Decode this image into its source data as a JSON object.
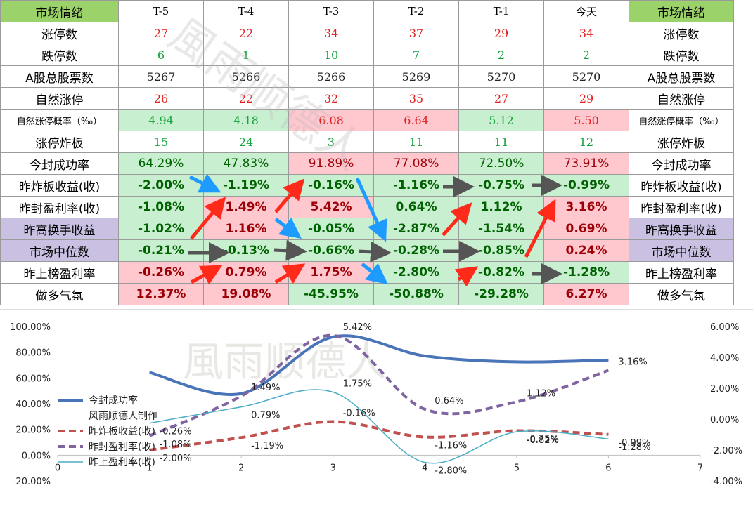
{
  "table": {
    "header": {
      "label_left": "市场情绪",
      "days": [
        "T-5",
        "T-4",
        "T-3",
        "T-2",
        "T-1",
        "今天"
      ],
      "label_right": "市场情绪"
    },
    "rows": [
      {
        "label": "涨停数",
        "values": [
          "27",
          "22",
          "34",
          "37",
          "29",
          "34"
        ],
        "colors": [
          "red",
          "red",
          "red",
          "red",
          "red",
          "red"
        ],
        "style": "plain"
      },
      {
        "label": "跌停数",
        "values": [
          "6",
          "1",
          "10",
          "7",
          "2",
          "2"
        ],
        "colors": [
          "green",
          "green",
          "green",
          "green",
          "green",
          "green"
        ],
        "style": "plain"
      },
      {
        "label": "A股总股票数",
        "values": [
          "5267",
          "5266",
          "5266",
          "5269",
          "5270",
          "5270"
        ],
        "colors": [
          "black",
          "black",
          "black",
          "black",
          "black",
          "black"
        ],
        "style": "plain"
      },
      {
        "label": "自然涨停",
        "values": [
          "26",
          "22",
          "32",
          "35",
          "27",
          "29"
        ],
        "colors": [
          "red",
          "red",
          "red",
          "red",
          "red",
          "red"
        ],
        "style": "plain"
      },
      {
        "label": "自然涨停概率（‰）",
        "values": [
          "4.94",
          "4.18",
          "6.08",
          "6.64",
          "5.12",
          "5.50"
        ],
        "colors": [
          "green",
          "green",
          "red",
          "red",
          "green",
          "red"
        ],
        "style": "mono-bg",
        "small_label": true
      },
      {
        "label": "涨停炸板",
        "values": [
          "15",
          "24",
          "3",
          "11",
          "11",
          "12"
        ],
        "colors": [
          "green",
          "green",
          "green",
          "green",
          "green",
          "green"
        ],
        "style": "plain"
      },
      {
        "label": "今封成功率",
        "values": [
          "64.29%",
          "47.83%",
          "91.89%",
          "77.08%",
          "72.50%",
          "73.91%"
        ],
        "colors": [
          "green",
          "green",
          "red",
          "red",
          "green",
          "red"
        ],
        "style": "pct-bg"
      },
      {
        "label": "昨炸板收益(收)",
        "values": [
          "-2.00%",
          "-1.19%",
          "-0.16%",
          "-1.16%",
          "-0.75%",
          "-0.99%"
        ],
        "colors": [
          "green",
          "green",
          "green",
          "green",
          "green",
          "green"
        ],
        "style": "bold-bg"
      },
      {
        "label": "昨封盈利率(收)",
        "values": [
          "-1.08%",
          "1.49%",
          "5.42%",
          "0.64%",
          "1.12%",
          "3.16%"
        ],
        "colors": [
          "green",
          "red",
          "red",
          "green",
          "green",
          "red"
        ],
        "style": "bold-bg"
      },
      {
        "label": "昨高换手收益",
        "values": [
          "-1.02%",
          "1.16%",
          "-0.05%",
          "-2.87%",
          "-1.54%",
          "0.69%"
        ],
        "colors": [
          "green",
          "red",
          "green",
          "green",
          "green",
          "red"
        ],
        "style": "bold-bg",
        "purple_label": true
      },
      {
        "label": "市场中位数",
        "values": [
          "-0.21%",
          "-0.13%",
          "-0.66%",
          "-0.28%",
          "-0.85%",
          "0.24%"
        ],
        "colors": [
          "green",
          "green",
          "green",
          "green",
          "green",
          "red"
        ],
        "style": "bold-bg",
        "purple_label": true
      },
      {
        "label": "昨上榜盈利率",
        "values": [
          "-0.26%",
          "0.79%",
          "1.75%",
          "-2.80%",
          "-0.82%",
          "-1.28%"
        ],
        "colors": [
          "red",
          "red",
          "red",
          "green",
          "green",
          "green"
        ],
        "style": "bold-bg"
      },
      {
        "label": "做多气氛",
        "values": [
          "12.37%",
          "19.08%",
          "-45.95%",
          "-50.88%",
          "-29.28%",
          "6.27%"
        ],
        "colors": [
          "red",
          "red",
          "green",
          "green",
          "green",
          "red"
        ],
        "style": "bold-bg"
      }
    ]
  },
  "colors": {
    "header_green": "#9bd36a",
    "cell_green": "#c8efcf",
    "cell_red": "#ffc7ce",
    "label_purple": "#c9c0e2",
    "arrow_red": "#ff2a1a",
    "arrow_blue": "#1e9bff",
    "arrow_gray": "#555555",
    "line_blue": "#4a74b8",
    "line_red_dash": "#c0504d",
    "line_purple_dash": "#8064a2",
    "line_cyan": "#4bacc6"
  },
  "watermark": "風雨顺德人",
  "chart_data": {
    "type": "line",
    "x_axis": {
      "range": [
        0,
        7
      ],
      "ticks": [
        "0",
        "1",
        "2",
        "3",
        "4",
        "5",
        "6",
        "7"
      ]
    },
    "y_left": {
      "range": [
        -20,
        100
      ],
      "ticks": [
        "-20.00%",
        "0.00%",
        "20.00%",
        "40.00%",
        "60.00%",
        "80.00%",
        "100.00%"
      ]
    },
    "y_right": {
      "range": [
        -4,
        6
      ],
      "ticks": [
        "-4.00%",
        "-2.00%",
        "0.00%",
        "2.00%",
        "4.00%",
        "6.00%"
      ]
    },
    "legend_position": "left",
    "series": [
      {
        "name": "今封成功率",
        "axis": "left",
        "style": "solid-thick",
        "color": "#4a74b8",
        "x": [
          1,
          2,
          3,
          4,
          5,
          6
        ],
        "y": [
          64.29,
          47.83,
          91.89,
          77.08,
          72.5,
          73.91
        ],
        "labels": [
          "",
          "",
          "",
          "",
          "",
          ""
        ]
      },
      {
        "name": "风雨顺德人制作",
        "axis": "right",
        "style": "none",
        "color": "#ffffff",
        "x": [],
        "y": [],
        "labels": []
      },
      {
        "name": "昨炸板收益(收)",
        "axis": "right",
        "style": "dash-thick",
        "color": "#c0504d",
        "x": [
          1,
          2,
          3,
          4,
          5,
          6
        ],
        "y": [
          -2.0,
          -1.19,
          -0.16,
          -1.16,
          -0.75,
          -0.99
        ],
        "labels": [
          "-2.00%",
          "-1.19%",
          "-0.16%",
          "-1.16%",
          "-0.75%",
          "-0.99%"
        ]
      },
      {
        "name": "昨封盈利率(收)",
        "axis": "right",
        "style": "dash-thick",
        "color": "#8064a2",
        "x": [
          1,
          2,
          3,
          4,
          5,
          6
        ],
        "y": [
          -1.08,
          1.49,
          5.42,
          0.64,
          1.12,
          3.16
        ],
        "labels": [
          "-1.08%",
          "1.49%",
          "5.42%",
          "0.64%",
          "1.12%",
          "3.16%"
        ]
      },
      {
        "name": "昨上盈利率(收)",
        "axis": "right",
        "style": "solid-thin",
        "color": "#4bacc6",
        "x": [
          1,
          2,
          3,
          4,
          5,
          6
        ],
        "y": [
          -0.26,
          0.79,
          1.75,
          -2.8,
          -0.82,
          -1.28
        ],
        "labels": [
          "-0.26%",
          "0.79%",
          "1.75%",
          "-2.80%",
          "-0.82%",
          "-1.28%"
        ]
      }
    ]
  }
}
